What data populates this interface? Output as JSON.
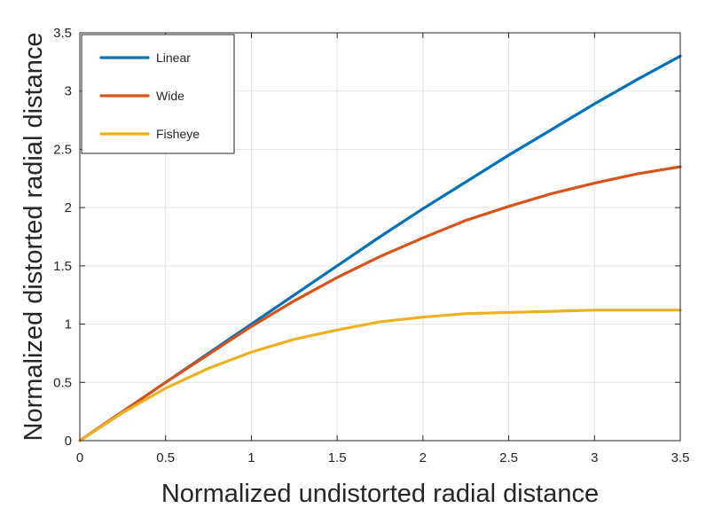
{
  "chart_data": {
    "type": "line",
    "title": "",
    "xlabel": "Normalized undistorted radial distance",
    "ylabel": "Normalized distorted radial distance",
    "xlim": [
      0,
      3.5
    ],
    "ylim": [
      0,
      3.5
    ],
    "grid": true,
    "legend_position": "top-left",
    "x_ticks": [
      0,
      0.5,
      1,
      1.5,
      2,
      2.5,
      3,
      3.5
    ],
    "y_ticks": [
      0,
      0.5,
      1,
      1.5,
      2,
      2.5,
      3,
      3.5
    ],
    "x_tick_labels": [
      "0",
      "0.5",
      "1",
      "1.5",
      "2",
      "2.5",
      "3",
      "3.5"
    ],
    "y_tick_labels": [
      "0",
      "0.5",
      "1",
      "1.5",
      "2",
      "2.5",
      "3",
      "3.5"
    ],
    "x": [
      0,
      0.25,
      0.5,
      0.75,
      1,
      1.25,
      1.5,
      1.75,
      2,
      2.25,
      2.5,
      2.75,
      3,
      3.25,
      3.5
    ],
    "series": [
      {
        "name": "Linear",
        "color": "#0072BD",
        "values": [
          0,
          0.25,
          0.5,
          0.75,
          1.0,
          1.25,
          1.5,
          1.75,
          1.99,
          2.22,
          2.45,
          2.67,
          2.89,
          3.1,
          3.3
        ]
      },
      {
        "name": "Wide",
        "color": "#D95319",
        "values": [
          0,
          0.25,
          0.5,
          0.74,
          0.98,
          1.2,
          1.4,
          1.58,
          1.74,
          1.89,
          2.01,
          2.12,
          2.21,
          2.29,
          2.35
        ]
      },
      {
        "name": "Fisheye",
        "color": "#EDB120",
        "values": [
          0,
          0.24,
          0.45,
          0.62,
          0.76,
          0.87,
          0.95,
          1.02,
          1.06,
          1.09,
          1.1,
          1.11,
          1.12,
          1.12,
          1.12
        ]
      }
    ]
  }
}
